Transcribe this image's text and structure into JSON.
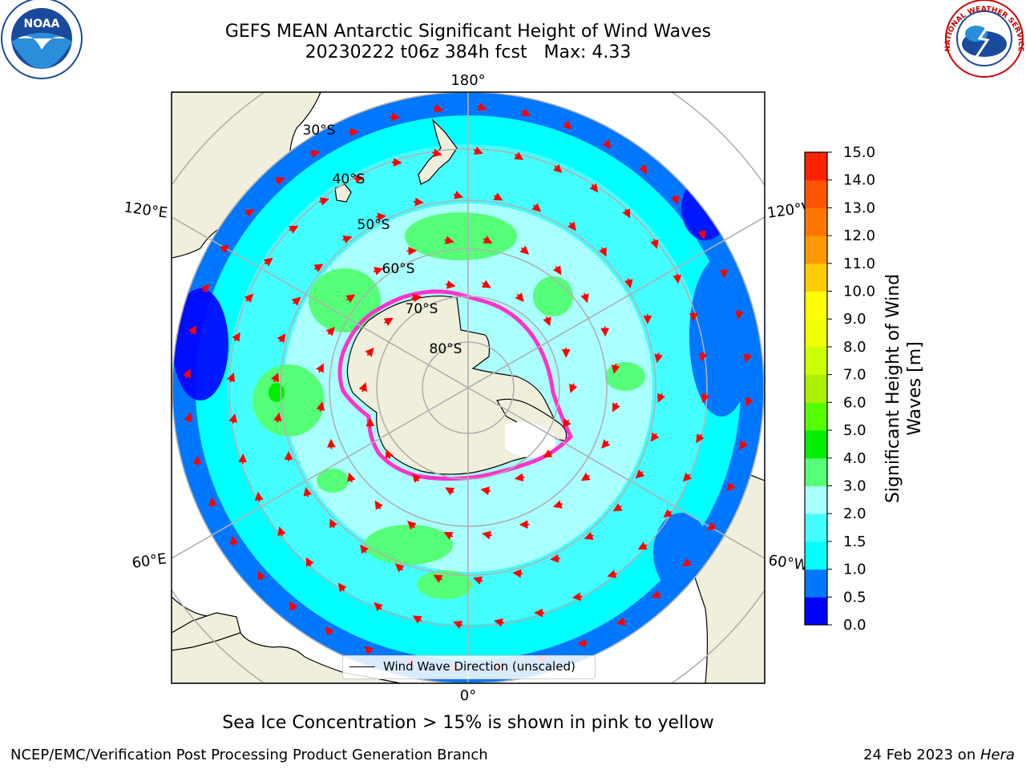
{
  "header": {
    "title_line1": "GEFS MEAN Antarctic Significant Height of Wind Waves",
    "title_line2": "20230222 t06z 384h fcst   Max: 4.33"
  },
  "logos": {
    "noaa": {
      "icon": "noaa-logo-icon",
      "text": "NOAA",
      "ring_text": "NATIONAL OCEANIC AND ATMOSPHERIC ADMINISTRATION · U.S. DEPARTMENT OF COMMERCE"
    },
    "nws": {
      "icon": "nws-logo-icon",
      "ring_text": "NATIONAL WEATHER SERVICE"
    }
  },
  "map": {
    "projection": "south-polar-stereographic",
    "longitude_labels": {
      "top": "180°",
      "bottom": "0°",
      "left_upper": "120°E",
      "left_lower": "60°E",
      "right_upper": "120°W",
      "right_lower": "60°W"
    },
    "latitude_labels": [
      "30°S",
      "40°S",
      "50°S",
      "60°S",
      "70°S",
      "80°S"
    ],
    "colors": {
      "land": "#efefdc",
      "ocean_base": "#00ffff",
      "arrow": "#ff0000",
      "sea_ice": "#ff33cc",
      "grid": "#b0b0b0"
    },
    "legend_label": "Wind Wave Direction (unscaled)"
  },
  "colorbar": {
    "title_line1": "Significant Height of Wind",
    "title_line2": "Waves [m]",
    "ticks": [
      "0.0",
      "0.5",
      "1.0",
      "1.5",
      "2.0",
      "3.0",
      "4.0",
      "5.0",
      "6.0",
      "7.0",
      "8.0",
      "9.0",
      "10.0",
      "11.0",
      "12.0",
      "13.0",
      "14.0",
      "15.0"
    ],
    "colors": [
      "#0000ff",
      "#0077ff",
      "#00ffff",
      "#44ffff",
      "#aaffff",
      "#55ff77",
      "#00ee00",
      "#55ff00",
      "#aaee00",
      "#ccff00",
      "#eeff00",
      "#ffff00",
      "#ffcc00",
      "#ff9900",
      "#ff7700",
      "#ff5500",
      "#ff2200"
    ]
  },
  "notes": {
    "sea_ice": "Sea Ice Concentration > 15% is shown in pink to yellow"
  },
  "footer": {
    "left": "NCEP/EMC/Verification Post Processing Product Generation Branch",
    "right_prefix": "24 Feb 2023 on ",
    "right_machine": "Hera"
  }
}
